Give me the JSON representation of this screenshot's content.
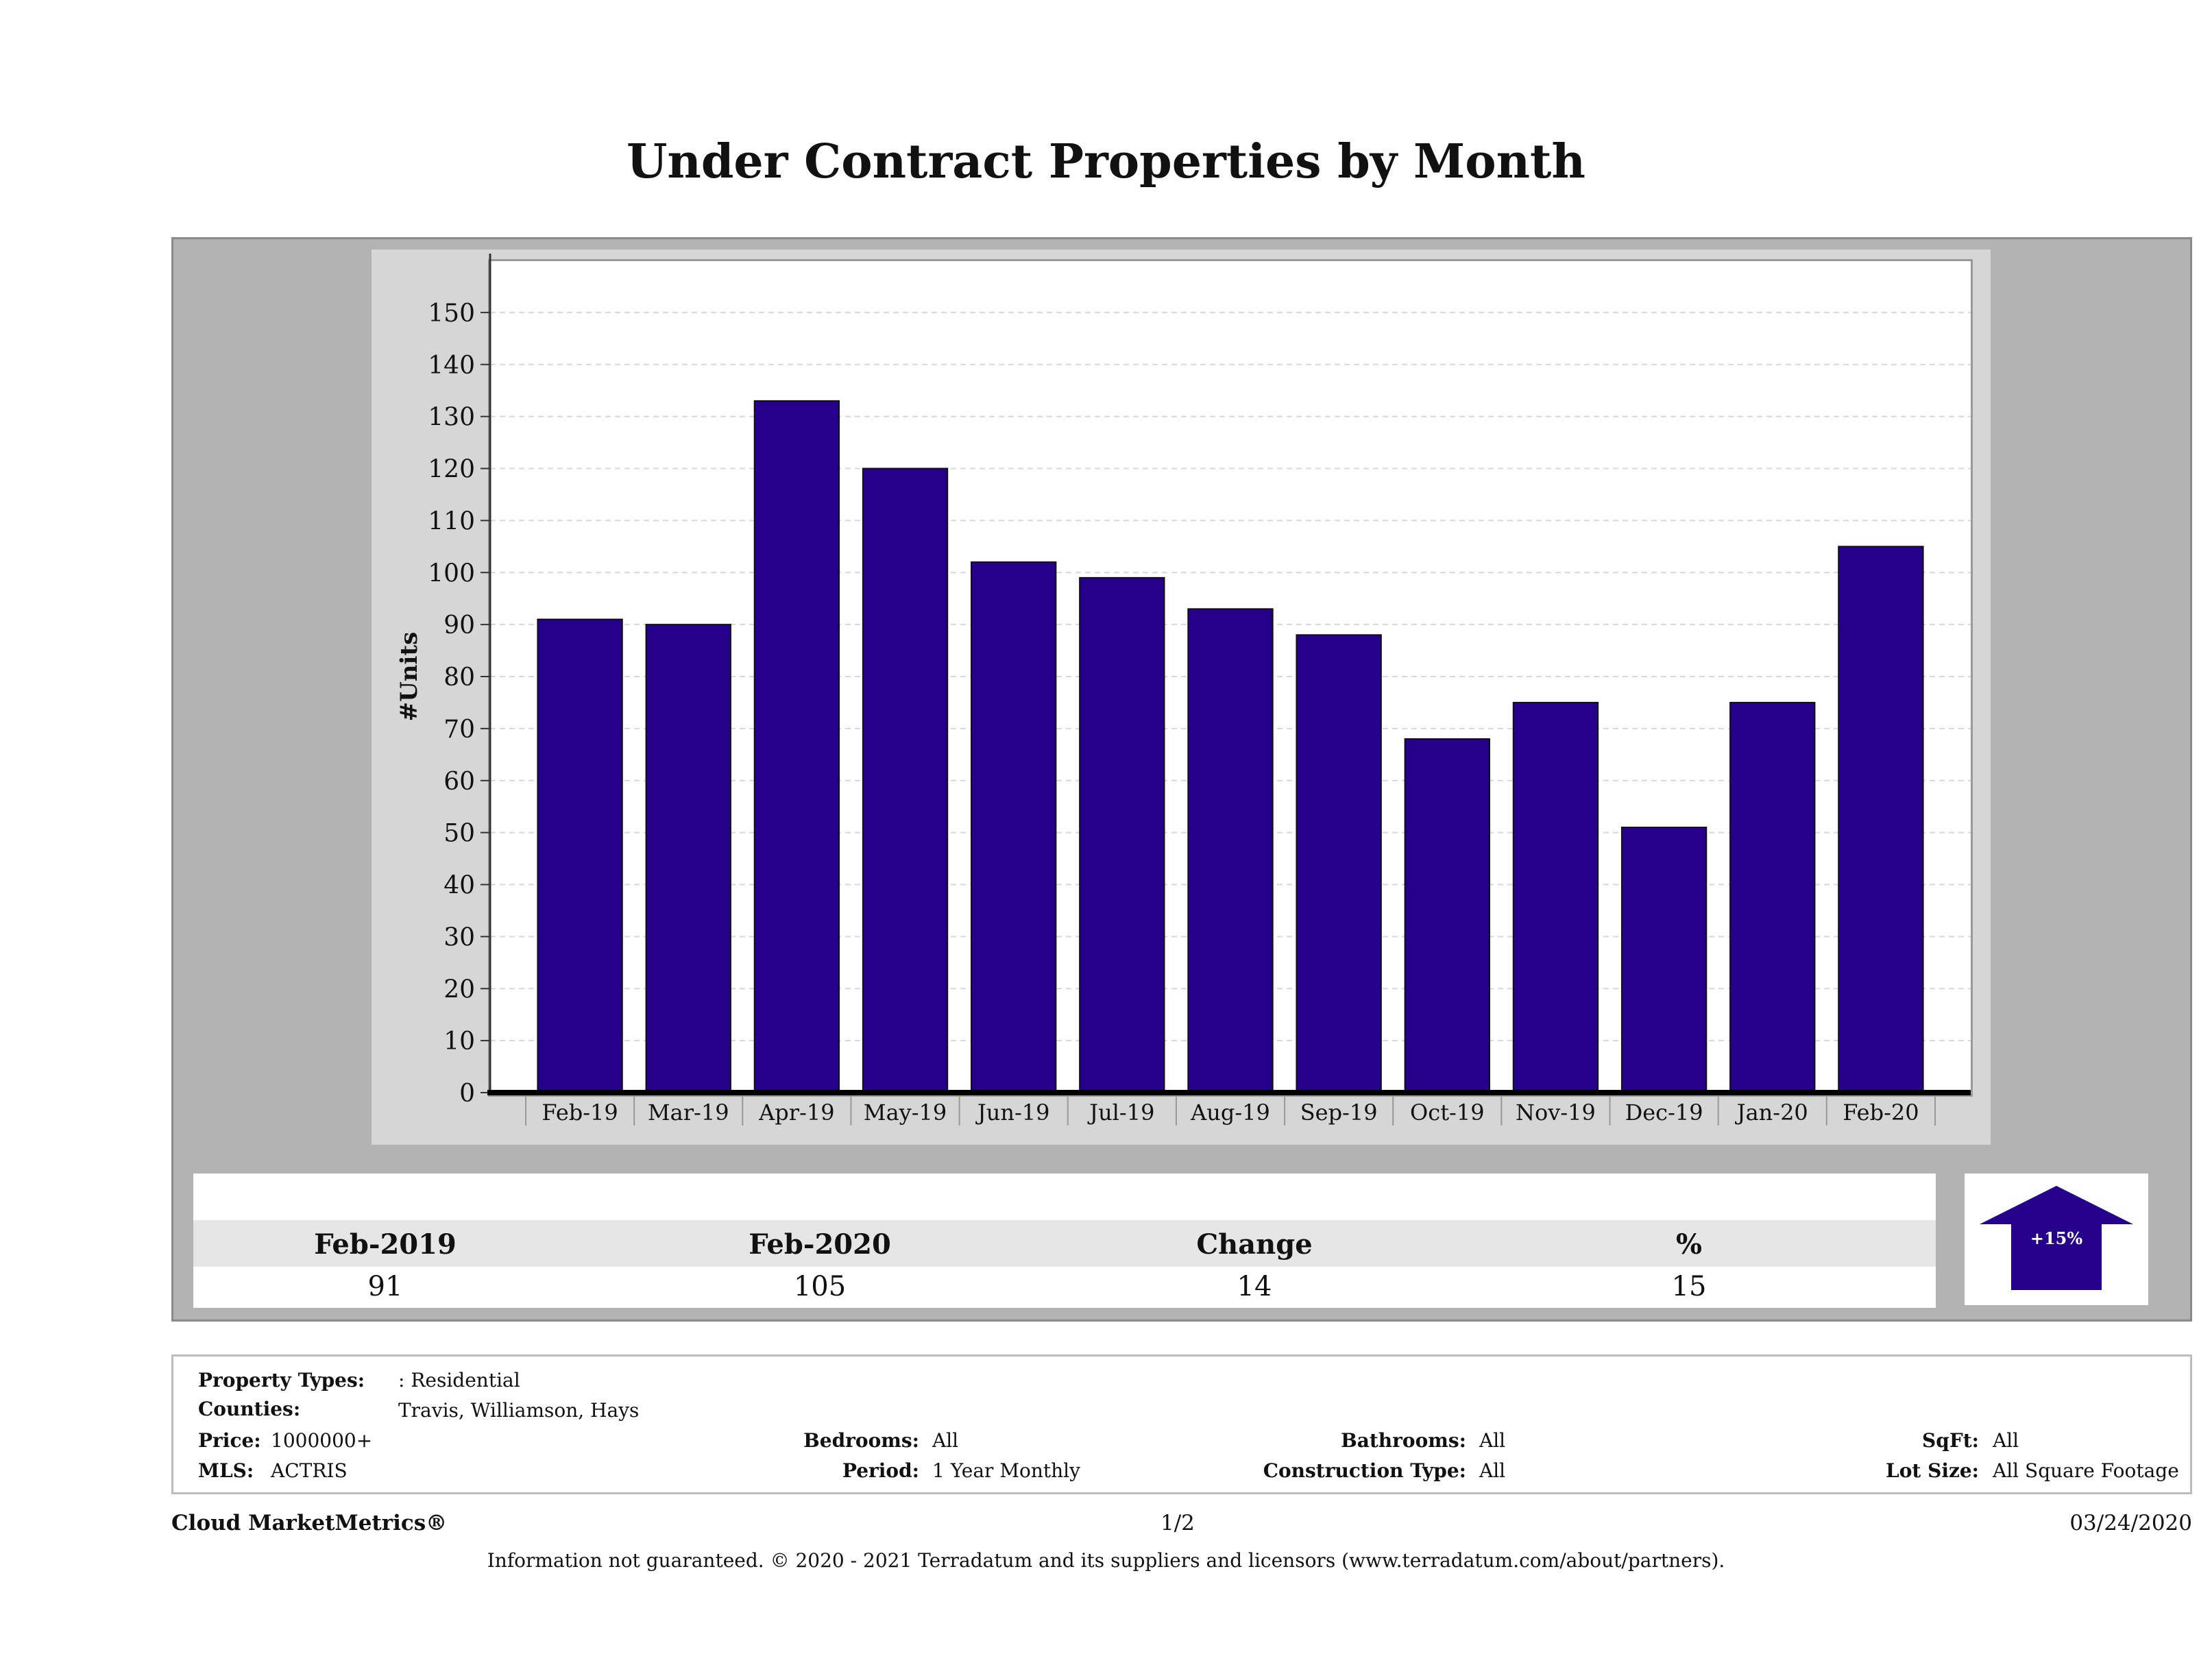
{
  "title": "Under Contract Properties by Month",
  "chart_data": {
    "type": "bar",
    "title": "Under Contract Properties by Month",
    "xlabel": "",
    "ylabel": "#Units",
    "categories": [
      "Feb-19",
      "Mar-19",
      "Apr-19",
      "May-19",
      "Jun-19",
      "Jul-19",
      "Aug-19",
      "Sep-19",
      "Oct-19",
      "Nov-19",
      "Dec-19",
      "Jan-20",
      "Feb-20"
    ],
    "values": [
      91,
      90,
      133,
      120,
      102,
      99,
      93,
      88,
      68,
      75,
      51,
      75,
      105
    ],
    "ylim": [
      0,
      160
    ],
    "yticks": [
      "0",
      "10",
      "20",
      "30",
      "40",
      "50",
      "60",
      "70",
      "80",
      "90",
      "100",
      "110",
      "120",
      "130",
      "140",
      "150"
    ],
    "grid": "horizontal dashed",
    "legend": "none",
    "bar_color": "#25008a"
  },
  "stats": {
    "labels": [
      "Feb-2019",
      "Feb-2020",
      "Change",
      "%"
    ],
    "values": [
      "91",
      "105",
      "14",
      "15"
    ]
  },
  "badge": {
    "text": "+15%",
    "direction": "up",
    "icon": "up-arrow-icon",
    "color": "#25008a"
  },
  "info": {
    "property_types_label": "Property Types:",
    "property_types_value": ": Residential",
    "counties_label": "Counties:",
    "counties_value": "Travis, Williamson, Hays",
    "price_label": "Price:",
    "price_value": "1000000+",
    "mls_label": "MLS:",
    "mls_value": "ACTRIS",
    "bedrooms_label": "Bedrooms:",
    "bedrooms_value": "All",
    "period_label": "Period:",
    "period_value": "1 Year Monthly",
    "bathrooms_label": "Bathrooms:",
    "bathrooms_value": "All",
    "construction_label": "Construction Type:",
    "construction_value": "All",
    "sqft_label": "SqFt:",
    "sqft_value": "All",
    "lot_label": "Lot Size:",
    "lot_value": "All Square Footage"
  },
  "footer": {
    "brand": "Cloud MarketMetrics®",
    "page": "1/2",
    "date": "03/24/2020",
    "disclaimer": "Information not guaranteed. © 2020 - 2021 Terradatum and its suppliers and licensors (www.terradatum.com/about/partners)."
  }
}
